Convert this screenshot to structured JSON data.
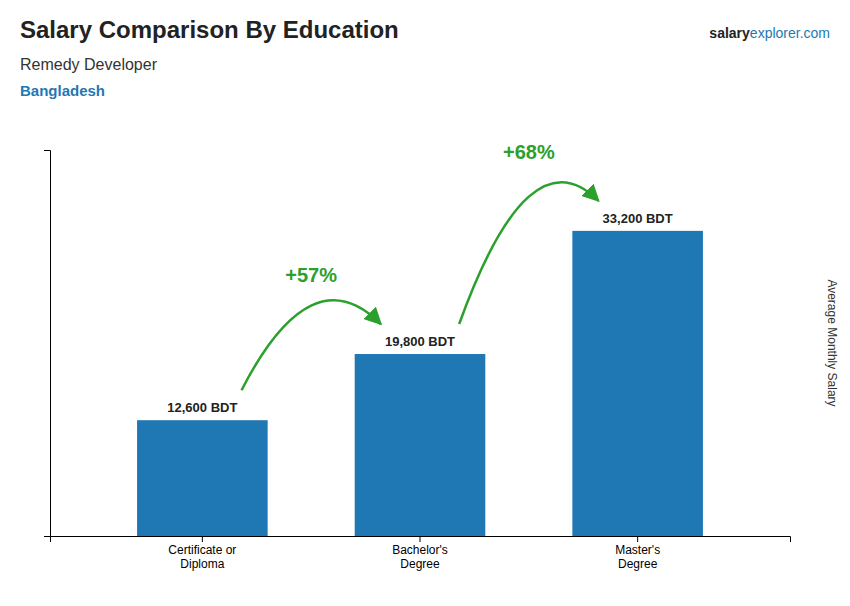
{
  "chart_data": {
    "type": "bar",
    "title": "Salary Comparison By Education",
    "subtitle": "Remedy Developer",
    "country": "Bangladesh",
    "source": [
      "salary",
      "explorer.com"
    ],
    "ylabel": "Average Monthly Salary",
    "categories": [
      "Certificate or\nDiploma",
      "Bachelor's\nDegree",
      "Master's\nDegree"
    ],
    "values": [
      12600,
      19800,
      33200
    ],
    "value_labels": [
      "12,600 BDT",
      "19,800 BDT",
      "33,200 BDT"
    ],
    "data_labels": true,
    "annotations": [
      "+57%",
      "+68%"
    ],
    "ylim": [
      0,
      42000
    ],
    "tick_labels": "x",
    "grid": false
  }
}
